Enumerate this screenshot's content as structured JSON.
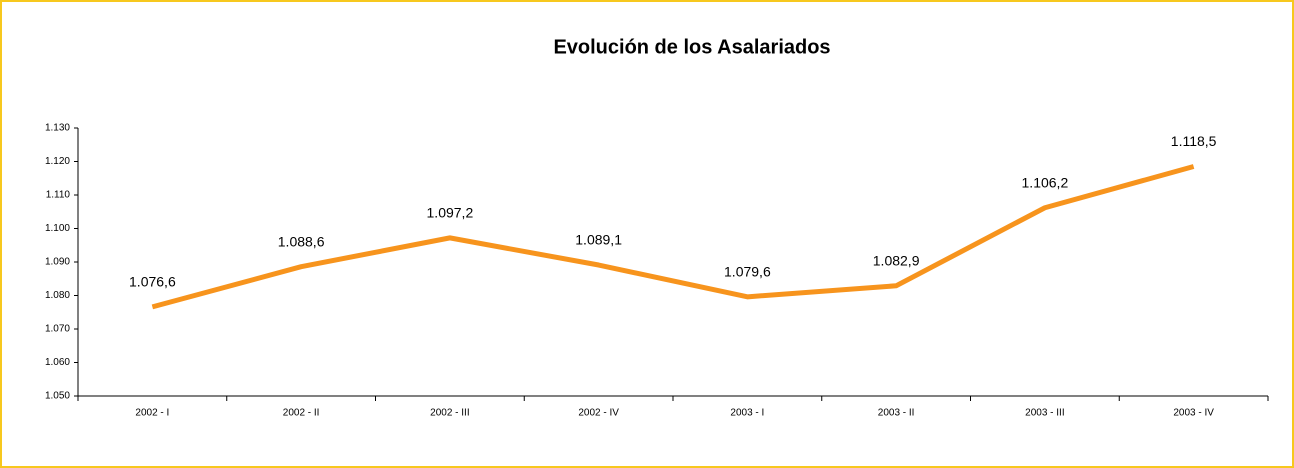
{
  "chart_data": {
    "type": "line",
    "title": "Evolución de los Asalariados",
    "categories": [
      "2002 - I",
      "2002 - II",
      "2002 - III",
      "2002 - IV",
      "2003 - I",
      "2003 - II",
      "2003 - III",
      "2003 - IV"
    ],
    "series": [
      {
        "color": "#f7941d",
        "values": [
          1076.6,
          1088.6,
          1097.2,
          1089.1,
          1079.6,
          1082.9,
          1106.2,
          1118.5
        ],
        "value_labels": [
          "1.076,6",
          "1.088,6",
          "1.097,2",
          "1.089,1",
          "1.079,6",
          "1.082,9",
          "1.106,2",
          "1.118,5"
        ]
      }
    ],
    "ylim": [
      1050,
      1130
    ],
    "yticks": [
      {
        "value": 1050,
        "label": "1.050"
      },
      {
        "value": 1060,
        "label": "1.060"
      },
      {
        "value": 1070,
        "label": "1.070"
      },
      {
        "value": 1080,
        "label": "1.080"
      },
      {
        "value": 1090,
        "label": "1.090"
      },
      {
        "value": 1100,
        "label": "1.100"
      },
      {
        "value": 1110,
        "label": "1.110"
      },
      {
        "value": 1120,
        "label": "1.120"
      },
      {
        "value": 1130,
        "label": "1.130"
      }
    ]
  }
}
